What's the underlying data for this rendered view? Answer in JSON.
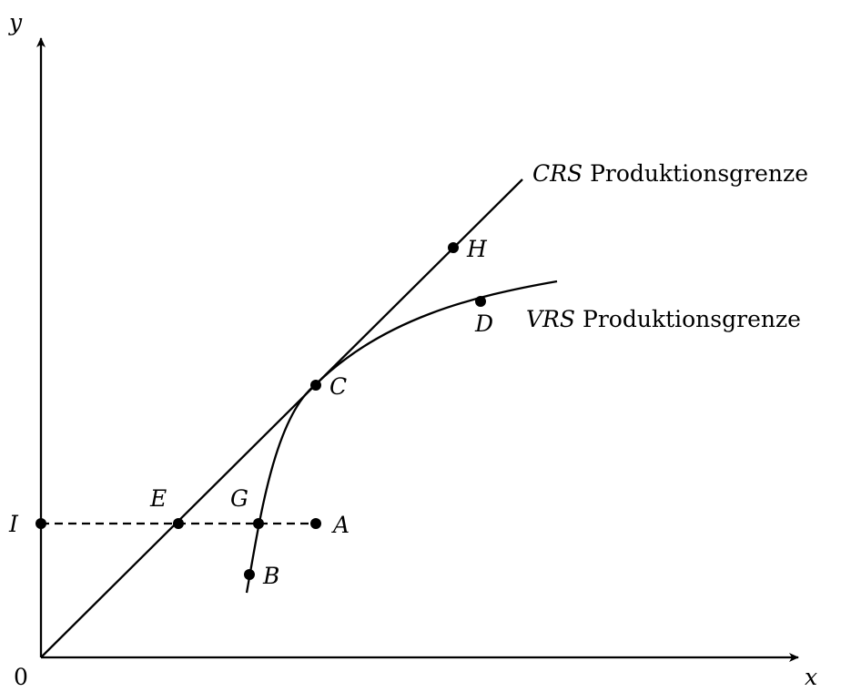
{
  "axes": {
    "y_label": "y",
    "x_label": "x",
    "origin_label": "0"
  },
  "frontiers": {
    "crs": {
      "symbol": "CRS",
      "text": "Produktionsgrenze"
    },
    "vrs": {
      "symbol": "VRS",
      "text": "Produktionsgrenze"
    }
  },
  "points": {
    "A": "A",
    "B": "B",
    "C": "C",
    "D": "D",
    "E": "E",
    "G": "G",
    "H": "H",
    "I": "I"
  }
}
